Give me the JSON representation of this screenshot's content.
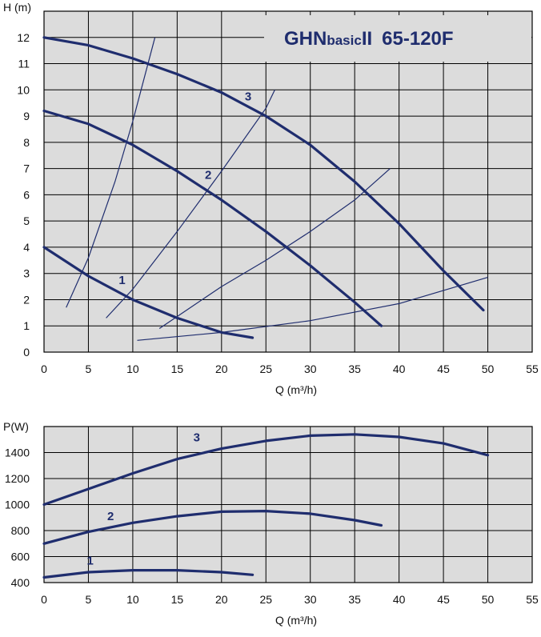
{
  "title": {
    "main": "GHN",
    "sub": "basic",
    "roman": "II",
    "model": "65-120F"
  },
  "colors": {
    "curve": "#1f2d6e",
    "grid": "#000000",
    "background": "#dcdcdc"
  },
  "chart_data": [
    {
      "type": "line",
      "ylabel": "H (m)",
      "xlabel": "Q (m³/h)",
      "xlim": [
        0,
        55
      ],
      "ylim": [
        0,
        13
      ],
      "xticks": [
        0,
        5,
        10,
        15,
        20,
        25,
        30,
        35,
        40,
        45,
        50,
        55
      ],
      "yticks": [
        0,
        1,
        2,
        3,
        4,
        5,
        6,
        7,
        8,
        9,
        10,
        11,
        12
      ],
      "grid": true,
      "series": [
        {
          "name": "1",
          "x": [
            0,
            5,
            10,
            15,
            20,
            23.5
          ],
          "y": [
            4.0,
            2.9,
            2.0,
            1.3,
            0.75,
            0.55
          ]
        },
        {
          "name": "2",
          "x": [
            0,
            5,
            10,
            15,
            20,
            25,
            30,
            35,
            38
          ],
          "y": [
            9.2,
            8.7,
            7.9,
            6.9,
            5.8,
            4.6,
            3.3,
            1.9,
            1.0
          ]
        },
        {
          "name": "3",
          "x": [
            0,
            5,
            10,
            15,
            20,
            25,
            30,
            35,
            40,
            45,
            49.5
          ],
          "y": [
            12.0,
            11.7,
            11.2,
            10.6,
            9.9,
            9.0,
            7.9,
            6.5,
            4.9,
            3.1,
            1.6
          ]
        }
      ],
      "system_curves": [
        {
          "x": [
            2.5,
            5,
            8,
            10,
            12.5
          ],
          "y": [
            1.7,
            3.6,
            6.5,
            8.8,
            12.0
          ]
        },
        {
          "x": [
            7,
            10,
            15,
            20,
            25,
            26
          ],
          "y": [
            1.3,
            2.4,
            4.6,
            6.9,
            9.3,
            10.0
          ]
        },
        {
          "x": [
            13,
            20,
            25,
            30,
            35,
            39
          ],
          "y": [
            0.9,
            2.5,
            3.5,
            4.6,
            5.8,
            7.0
          ]
        },
        {
          "x": [
            10.5,
            20,
            30,
            40,
            50
          ],
          "y": [
            0.45,
            0.75,
            1.2,
            1.85,
            2.85
          ]
        }
      ],
      "labels": [
        {
          "text": "1",
          "x": 8.8,
          "y": 2.6
        },
        {
          "text": "2",
          "x": 18.5,
          "y": 6.6
        },
        {
          "text": "3",
          "x": 23.0,
          "y": 9.6
        }
      ]
    },
    {
      "type": "line",
      "ylabel": "P(W)",
      "xlabel": "Q (m³/h)",
      "xlim": [
        0,
        55
      ],
      "ylim": [
        400,
        1600
      ],
      "xticks": [
        0,
        5,
        10,
        15,
        20,
        25,
        30,
        35,
        40,
        45,
        50,
        55
      ],
      "yticks": [
        400,
        600,
        800,
        1000,
        1200,
        1400
      ],
      "grid": true,
      "series": [
        {
          "name": "1",
          "x": [
            0,
            5,
            10,
            15,
            20,
            23.5
          ],
          "y": [
            440,
            480,
            495,
            495,
            480,
            460
          ]
        },
        {
          "name": "2",
          "x": [
            0,
            5,
            10,
            15,
            20,
            25,
            30,
            35,
            38
          ],
          "y": [
            700,
            790,
            860,
            910,
            945,
            950,
            930,
            880,
            840
          ]
        },
        {
          "name": "3",
          "x": [
            0,
            5,
            10,
            15,
            20,
            25,
            30,
            35,
            40,
            45,
            50
          ],
          "y": [
            1000,
            1120,
            1240,
            1350,
            1430,
            1490,
            1530,
            1540,
            1520,
            1470,
            1380
          ]
        }
      ],
      "labels": [
        {
          "text": "1",
          "x": 5.2,
          "y": 540
        },
        {
          "text": "2",
          "x": 7.5,
          "y": 880
        },
        {
          "text": "3",
          "x": 17.2,
          "y": 1485
        }
      ]
    }
  ]
}
